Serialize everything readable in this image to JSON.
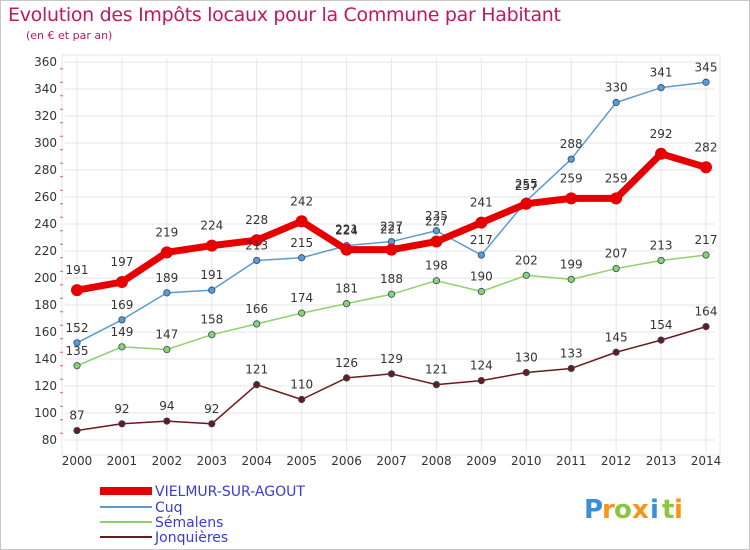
{
  "header": {
    "title": "Evolution des Impôts locaux pour la Commune par Habitant",
    "subtitle": "(en € et par an)"
  },
  "brand": {
    "letters": [
      "P",
      "r",
      "o",
      "x",
      "i",
      "t",
      "i"
    ],
    "colors": [
      "#3a8fd6",
      "#f7941d",
      "#8cc63f",
      "#f7941d",
      "#3a8fd6",
      "#8cc63f",
      "#f7941d"
    ]
  },
  "chart_data": {
    "type": "line",
    "x": [
      "2000",
      "2001",
      "2002",
      "2003",
      "2004",
      "2005",
      "2006",
      "2007",
      "2008",
      "2009",
      "2010",
      "2011",
      "2012",
      "2013",
      "2014"
    ],
    "ylim": [
      80,
      360
    ],
    "yticks": [
      "80",
      "100",
      "120",
      "140",
      "160",
      "180",
      "200",
      "220",
      "240",
      "260",
      "280",
      "300",
      "320",
      "340",
      "360"
    ],
    "grid": true,
    "legend_position": "bottom-left",
    "series": [
      {
        "name": "Jonquières",
        "color": "#6b1a1a",
        "values": [
          87,
          92,
          94,
          92,
          121,
          110,
          126,
          129,
          121,
          124,
          130,
          133,
          145,
          154,
          164
        ]
      },
      {
        "name": "Sémalens",
        "color": "#8fd16a",
        "values": [
          135,
          149,
          147,
          158,
          166,
          174,
          181,
          188,
          198,
          190,
          202,
          199,
          207,
          213,
          217
        ]
      },
      {
        "name": "Cuq",
        "color": "#5b9bd5",
        "values": [
          152,
          169,
          189,
          191,
          213,
          215,
          224,
          227,
          235,
          217,
          257,
          288,
          330,
          341,
          345
        ]
      },
      {
        "name": "VIELMUR-SUR-AGOUT",
        "color": "#e60000",
        "values": [
          191,
          197,
          219,
          224,
          228,
          242,
          221,
          221,
          227,
          241,
          255,
          259,
          259,
          292,
          282
        ]
      }
    ],
    "legend_order": [
      "VIELMUR-SUR-AGOUT",
      "Cuq",
      "Sémalens",
      "Jonquières"
    ]
  }
}
